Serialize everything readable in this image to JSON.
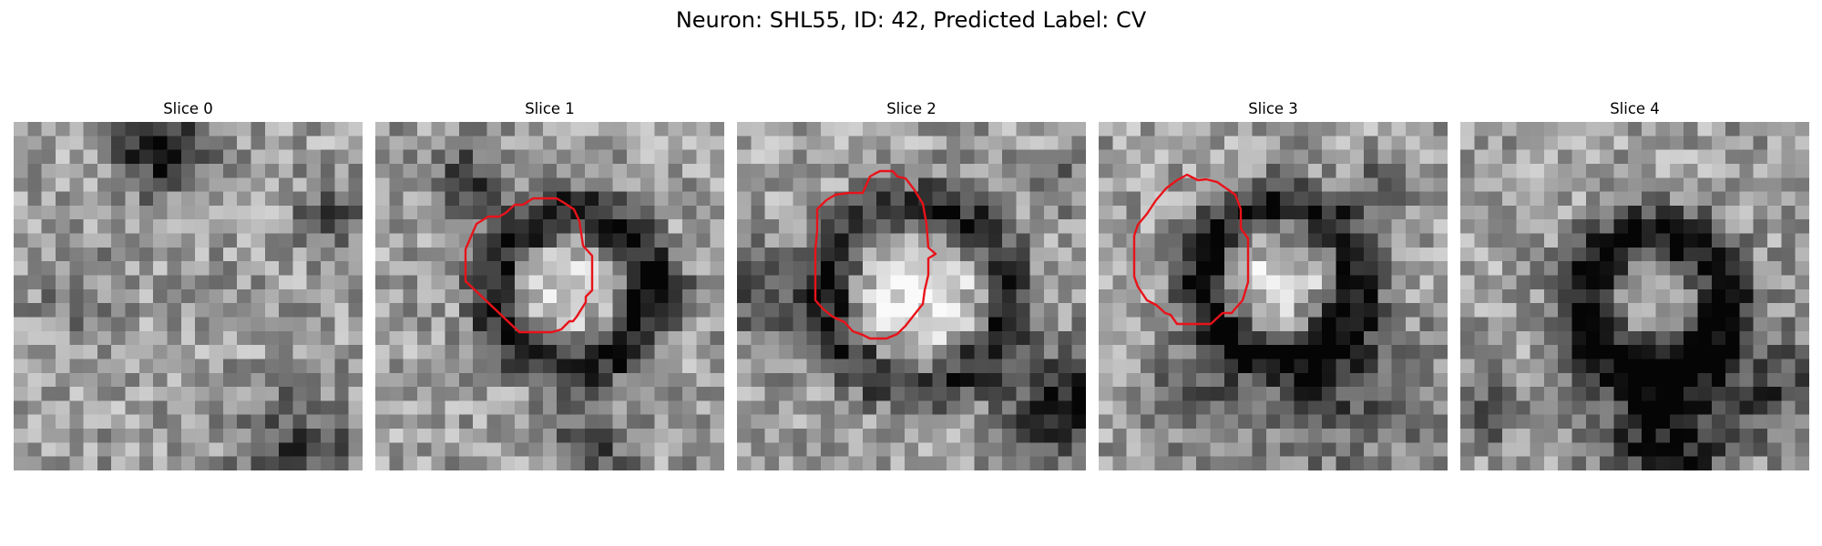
{
  "figure": {
    "title": "Neuron: SHL55, ID: 42, Predicted Label: CV"
  },
  "panels": [
    {
      "label": "Slice 0",
      "has_contour": false
    },
    {
      "label": "Slice 1",
      "has_contour": true
    },
    {
      "label": "Slice 2",
      "has_contour": true
    },
    {
      "label": "Slice 3",
      "has_contour": true
    },
    {
      "label": "Slice 4",
      "has_contour": false
    }
  ],
  "colors": {
    "contour": "#e8131a",
    "background": "#ffffff"
  }
}
